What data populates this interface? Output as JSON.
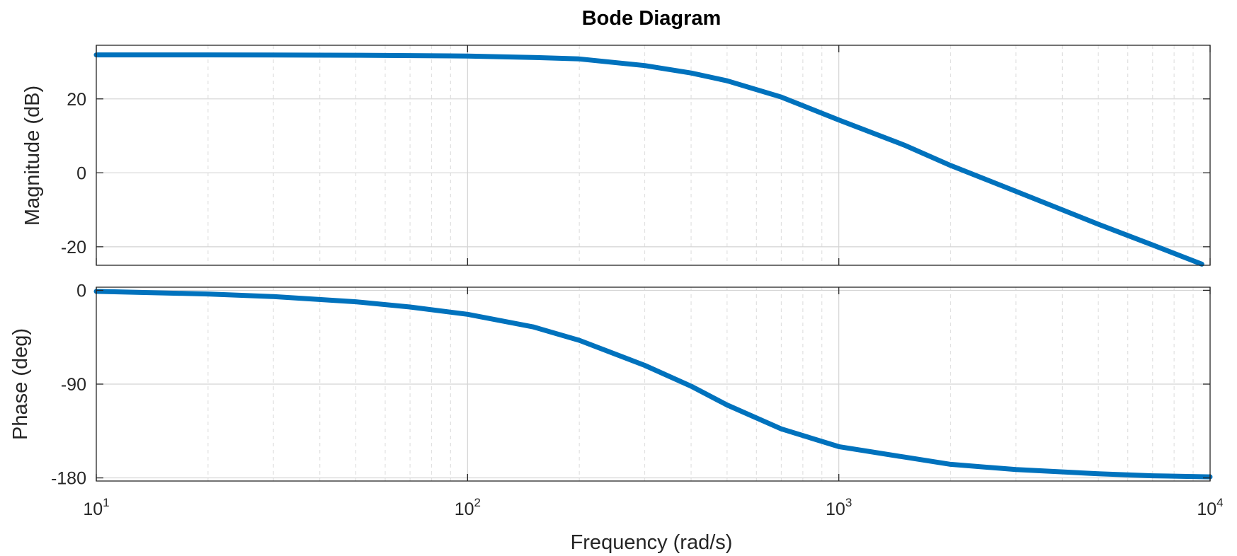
{
  "chart_data": {
    "type": "line",
    "title": "Bode Diagram",
    "xlabel": "Frequency  (rad/s)",
    "x_scale": "log",
    "xlim": [
      10,
      10000
    ],
    "x_ticks": [
      {
        "value": 10,
        "base": "10",
        "exp": "1"
      },
      {
        "value": 100,
        "base": "10",
        "exp": "2"
      },
      {
        "value": 1000,
        "base": "10",
        "exp": "3"
      },
      {
        "value": 10000,
        "base": "10",
        "exp": "4"
      }
    ],
    "grid": true,
    "line_color": "#0072BD",
    "panels": [
      {
        "name": "magnitude",
        "ylabel": "Magnitude (dB)",
        "ylim": [
          -25,
          34.5
        ],
        "y_ticks": [
          {
            "value": 20,
            "label": "20"
          },
          {
            "value": 0,
            "label": "0"
          },
          {
            "value": -20,
            "label": "-20"
          }
        ],
        "x": [
          10,
          20,
          50,
          100,
          150,
          200,
          300,
          400,
          500,
          700,
          1000,
          1500,
          2000,
          3000,
          5000,
          7000,
          9500
        ],
        "y": [
          31.9,
          31.9,
          31.8,
          31.6,
          31.2,
          30.8,
          29.0,
          27.0,
          24.9,
          20.5,
          14.3,
          7.5,
          2.0,
          -5.0,
          -13.9,
          -19.5,
          -24.7
        ]
      },
      {
        "name": "phase",
        "ylabel": "Phase (deg)",
        "ylim": [
          -183,
          3
        ],
        "y_ticks": [
          {
            "value": 0,
            "label": "0"
          },
          {
            "value": -90,
            "label": "-90"
          },
          {
            "value": -180,
            "label": "-180"
          }
        ],
        "x": [
          10,
          20,
          30,
          50,
          70,
          100,
          150,
          200,
          300,
          400,
          500,
          700,
          1000,
          1500,
          2000,
          3000,
          5000,
          7000,
          10000
        ],
        "y": [
          -1,
          -3.5,
          -6,
          -11,
          -16,
          -23,
          -35,
          -48,
          -72,
          -92,
          -110,
          -133,
          -150,
          -160,
          -167,
          -172,
          -176,
          -178,
          -179
        ]
      }
    ]
  }
}
